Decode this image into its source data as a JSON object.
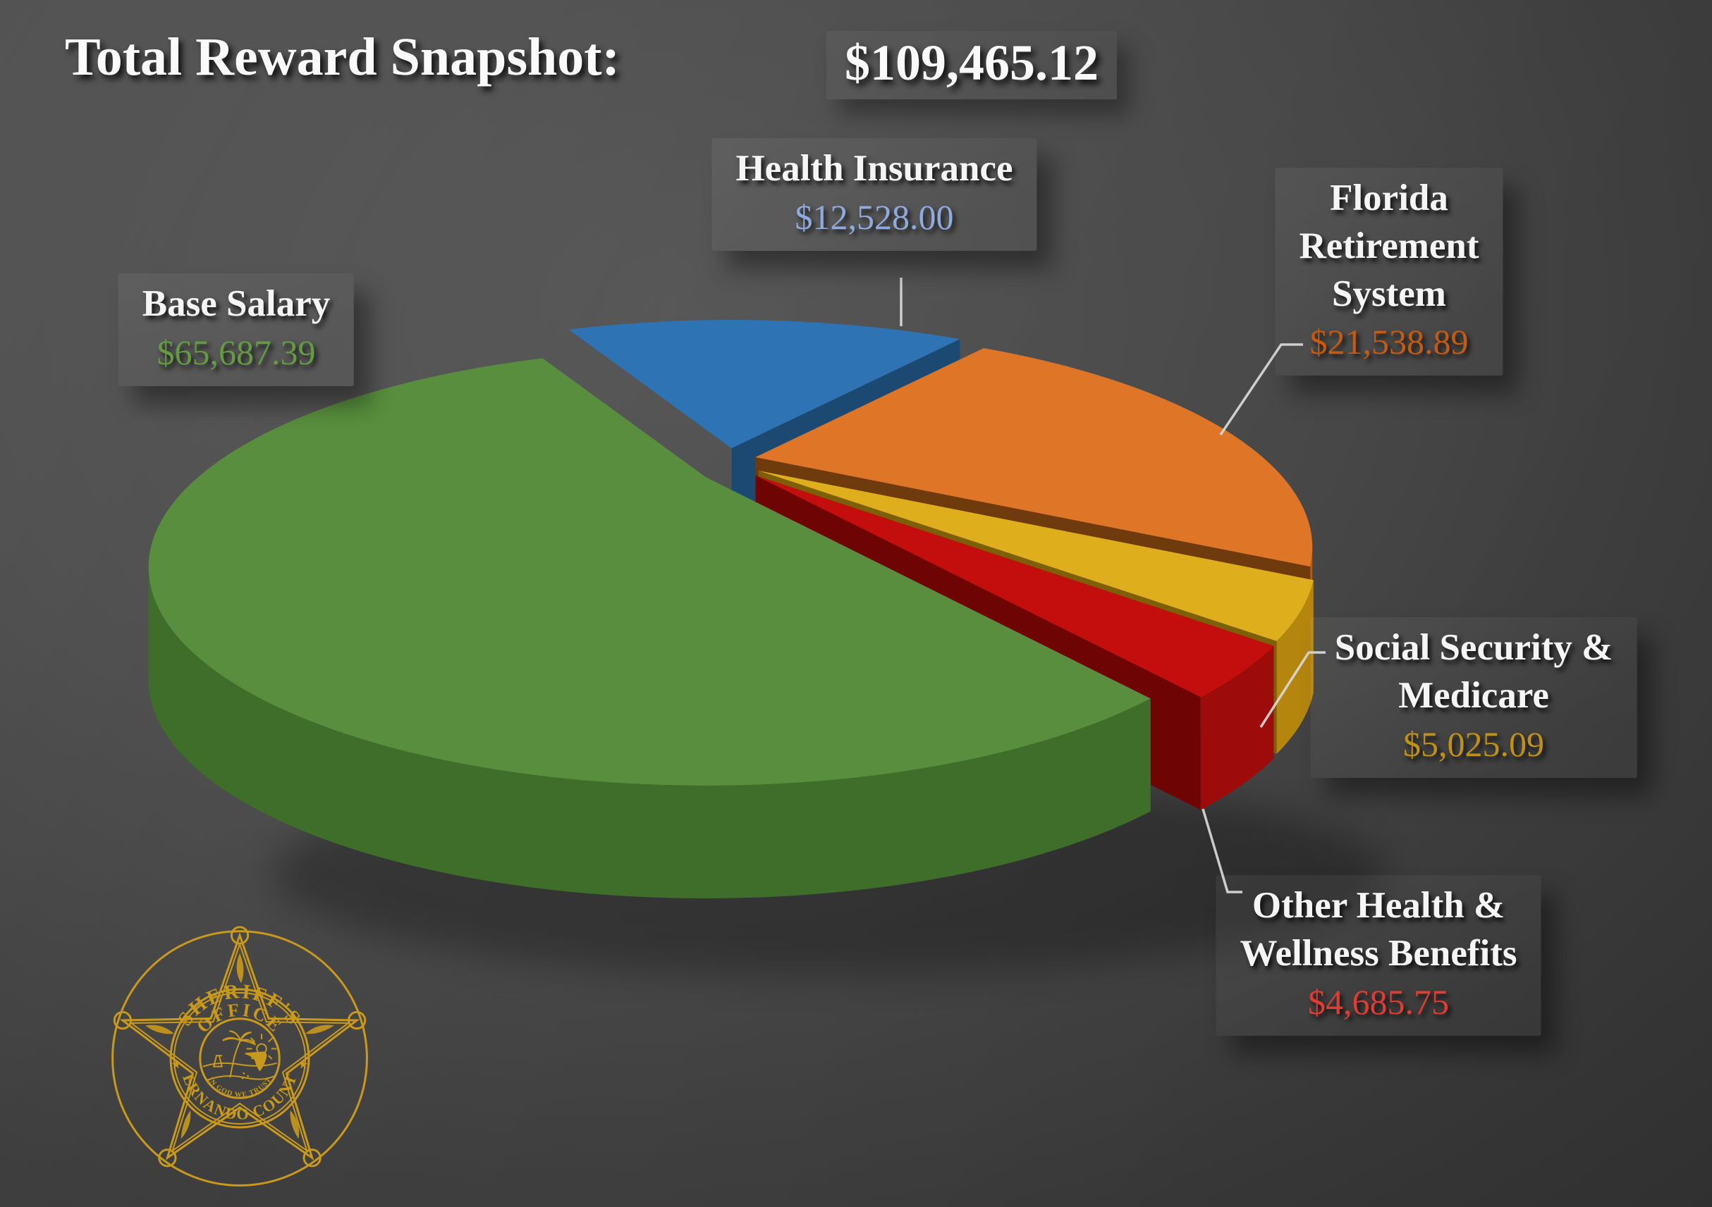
{
  "title": {
    "label": "Total Reward Snapshot:",
    "amount": "$109,465.12"
  },
  "chart_data": {
    "type": "pie",
    "style": "3d-exploded",
    "title": "Total Reward Snapshot: $109,465.12",
    "total_value": 109465.12,
    "total_label": "$109,465.12",
    "legend_position": "callout-labels-around-pie",
    "start_angle_deg": -17,
    "slices": [
      {
        "label": "Health Insurance",
        "value": 12528.0,
        "amount": "$12,528.00",
        "percent": 11.44,
        "top_color": "#2E74B5",
        "side_color": "#1F4E79",
        "cut_color": "#1C4971",
        "amount_color": "#8FAADC"
      },
      {
        "label": "Florida Retirement System",
        "value": 21538.89,
        "amount": "$21,538.89",
        "percent": 19.68,
        "top_color": "#DE7527",
        "side_color": "#B35A16",
        "cut_color": "#6F3A0C",
        "amount_color": "#C55A11"
      },
      {
        "label": "Social Security & Medicare",
        "value": 5025.09,
        "amount": "$5,025.09",
        "percent": 4.59,
        "top_color": "#DFAE1C",
        "side_color": "#B4860E",
        "cut_color": "#7D5F08",
        "amount_color": "#C09112"
      },
      {
        "label": "Other Health & Wellness Benefits",
        "value": 4685.75,
        "amount": "$4,685.75",
        "percent": 4.28,
        "top_color": "#C40E0E",
        "side_color": "#9E0B0B",
        "cut_color": "#6E0404",
        "amount_color": "#E03C31"
      },
      {
        "label": "Base Salary",
        "value": 65687.39,
        "amount": "$65,687.39",
        "percent": 60.01,
        "top_color": "#588E3D",
        "side_color": "#3E6E2A",
        "cut_color": "#35612366",
        "amount_color": "#639A43"
      }
    ]
  },
  "callouts": {
    "health": {
      "line1": "Health Insurance",
      "amount": "$12,528.00"
    },
    "frs": {
      "line1": "Florida",
      "line2": "Retirement",
      "line3": "System",
      "amount": "$21,538.89"
    },
    "base": {
      "line1": "Base Salary",
      "amount": "$65,687.39"
    },
    "ssm": {
      "line1": "Social Security &",
      "line2": "Medicare",
      "amount": "$5,025.09"
    },
    "other": {
      "line1": "Other Health &",
      "line2": "Wellness Benefits",
      "amount": "$4,685.75"
    }
  },
  "badge": {
    "arc_top_1": "SHERIFF'S",
    "arc_top_2": "OFFICE",
    "arc_bottom": "HERNANDO COUNTY",
    "motto": "IN GOD WE TRUST",
    "color": "#C9991C"
  }
}
